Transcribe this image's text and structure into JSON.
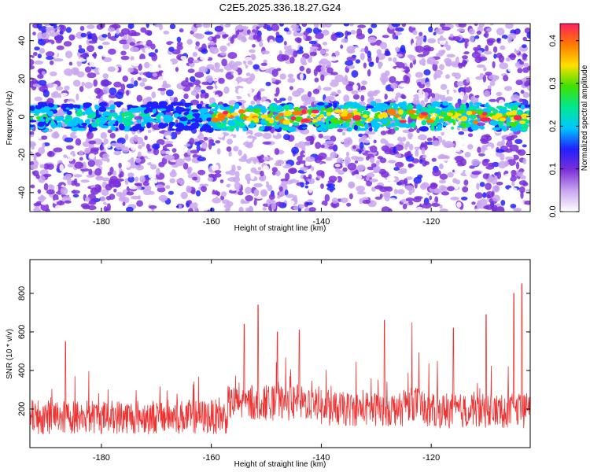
{
  "title": "C2E5.2025.336.18.27.G24",
  "chart_data": [
    {
      "type": "heatmap",
      "xlabel": "Height of straight line (km)",
      "ylabel": "Frequency (Hz)",
      "xlim": [
        -193,
        -102
      ],
      "ylim": [
        -50,
        49
      ],
      "xticks": [
        -180,
        -160,
        -140,
        -120
      ],
      "yticks": [
        -40,
        -20,
        0,
        20,
        40
      ],
      "colorbar": {
        "label": "Normalized spectral amplitude",
        "range": [
          0.0,
          0.44
        ],
        "ticks": [
          0.0,
          0.1,
          0.2,
          0.3,
          0.4
        ],
        "colors": [
          "#ffffff",
          "#c9a6ee",
          "#7b2fd9",
          "#2020ff",
          "#00c8ff",
          "#00e890",
          "#40e000",
          "#ffe000",
          "#ff7a00",
          "#ff2060"
        ]
      },
      "band_center_hz": 0,
      "band_start_km": -160
    },
    {
      "type": "line",
      "xlabel": "Height of straight line (km)",
      "ylabel": "SNR (10 * v/v)",
      "xlim": [
        -193,
        -102
      ],
      "ylim": [
        0,
        975
      ],
      "xticks": [
        -180,
        -160,
        -140,
        -120
      ],
      "yticks": [
        200,
        400,
        600,
        800
      ],
      "color": "#ee3333",
      "peaks": [
        {
          "x": -186.5,
          "y": 550
        },
        {
          "x": -154,
          "y": 640
        },
        {
          "x": -151.5,
          "y": 740
        },
        {
          "x": -148,
          "y": 600
        },
        {
          "x": -144,
          "y": 610
        },
        {
          "x": -128.5,
          "y": 660
        },
        {
          "x": -123.5,
          "y": 650
        },
        {
          "x": -116,
          "y": 620
        },
        {
          "x": -110,
          "y": 690
        },
        {
          "x": -105,
          "y": 800
        },
        {
          "x": -103.5,
          "y": 850
        }
      ]
    }
  ]
}
